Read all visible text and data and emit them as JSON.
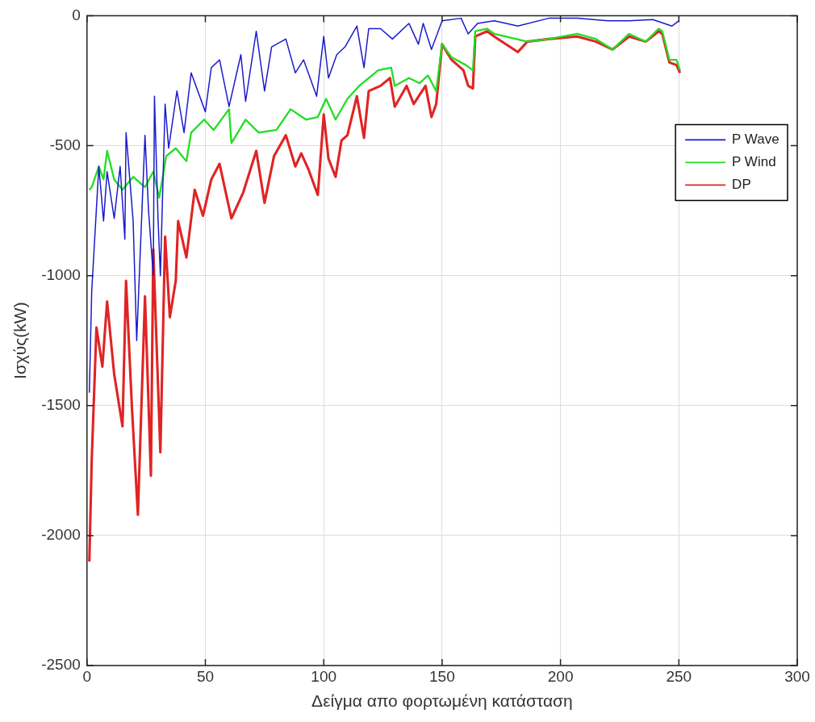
{
  "chart_data": {
    "type": "line",
    "xlabel": "Δείγμα απο φορτωμένη κατάσταση",
    "ylabel": "Ισχύς(kW)",
    "xlim": [
      0,
      300
    ],
    "xticks": [
      0,
      50,
      100,
      150,
      200,
      250,
      300
    ],
    "ylim": [
      -2500,
      0
    ],
    "yticks": [
      -2500,
      -2000,
      -1500,
      -1000,
      -500,
      0
    ],
    "grid": true,
    "legend": "top right",
    "marker": "none",
    "line_style": "solid",
    "series": [
      {
        "name": "P Wave",
        "color": "#1a1acc",
        "x": [
          1,
          2,
          5,
          7,
          8.5,
          11.5,
          14,
          16,
          16.5,
          19.5,
          21,
          24.5,
          26,
          28,
          28.5,
          30,
          31,
          33,
          34.5,
          38,
          41,
          44,
          50,
          52.5,
          56,
          60,
          65,
          67,
          71.5,
          75,
          78,
          84,
          88,
          91.5,
          97,
          100,
          102,
          105.5,
          109,
          114,
          117,
          119,
          124,
          129,
          136,
          140,
          142,
          145.5,
          150,
          158,
          161,
          165,
          172,
          182,
          195,
          207,
          220,
          229,
          239,
          247,
          250
        ],
        "values": [
          -1450,
          -1060,
          -580,
          -790,
          -600,
          -780,
          -580,
          -860,
          -450,
          -790,
          -1250,
          -460,
          -750,
          -1000,
          -310,
          -780,
          -1000,
          -340,
          -510,
          -290,
          -450,
          -220,
          -370,
          -200,
          -170,
          -350,
          -150,
          -330,
          -60,
          -290,
          -120,
          -90,
          -220,
          -170,
          -310,
          -80,
          -240,
          -150,
          -120,
          -40,
          -200,
          -50,
          -50,
          -90,
          -30,
          -110,
          -30,
          -130,
          -20,
          -10,
          -70,
          -30,
          -20,
          -40,
          -10,
          -10,
          -20,
          -20,
          -15,
          -40,
          -20
        ]
      },
      {
        "name": "P Wind",
        "color": "#22dd22",
        "x": [
          1,
          2,
          5,
          7,
          8.5,
          11.5,
          15,
          19.5,
          24.5,
          28,
          30.5,
          33.5,
          37.5,
          42,
          44,
          49.5,
          53.5,
          60,
          61,
          67,
          72.5,
          80,
          86,
          92.5,
          97.5,
          101,
          105,
          110,
          115,
          123,
          128.5,
          130,
          136,
          140.5,
          144,
          147.5,
          150,
          154,
          160,
          163,
          164,
          169,
          172,
          186,
          195,
          207,
          215,
          222,
          229,
          236,
          241.5,
          243,
          246,
          249,
          250.5
        ],
        "values": [
          -670,
          -660,
          -580,
          -630,
          -520,
          -630,
          -670,
          -620,
          -660,
          -600,
          -700,
          -540,
          -510,
          -560,
          -450,
          -400,
          -440,
          -360,
          -490,
          -400,
          -450,
          -440,
          -360,
          -400,
          -390,
          -320,
          -400,
          -320,
          -270,
          -210,
          -200,
          -270,
          -240,
          -260,
          -230,
          -290,
          -110,
          -160,
          -190,
          -210,
          -60,
          -50,
          -70,
          -100,
          -90,
          -70,
          -90,
          -130,
          -70,
          -100,
          -50,
          -60,
          -170,
          -170,
          -210
        ]
      },
      {
        "name": "DP",
        "color": "#e02424",
        "x": [
          1,
          2,
          4,
          6.5,
          8.5,
          11.5,
          15,
          16.5,
          19,
          21.5,
          24.5,
          27,
          28,
          31,
          33,
          35,
          37.5,
          38.5,
          42,
          45.5,
          49,
          52.5,
          56,
          61,
          66,
          71.5,
          75,
          79,
          84,
          88,
          90.5,
          93.5,
          97.5,
          100,
          102,
          105,
          107.5,
          110,
          114,
          117,
          119,
          124,
          128,
          130,
          135,
          138,
          143,
          145.5,
          147.5,
          150,
          154,
          159,
          161,
          163,
          164,
          169,
          172,
          182,
          186,
          195,
          207,
          215,
          222,
          229,
          236,
          241.5,
          243,
          246,
          249,
          250.5
        ],
        "values": [
          -2100,
          -1710,
          -1200,
          -1350,
          -1100,
          -1380,
          -1580,
          -1020,
          -1510,
          -1920,
          -1080,
          -1770,
          -900,
          -1680,
          -850,
          -1160,
          -1020,
          -790,
          -930,
          -670,
          -770,
          -630,
          -570,
          -780,
          -680,
          -520,
          -720,
          -540,
          -460,
          -580,
          -530,
          -590,
          -690,
          -380,
          -550,
          -620,
          -480,
          -460,
          -310,
          -470,
          -290,
          -270,
          -240,
          -350,
          -270,
          -340,
          -270,
          -390,
          -340,
          -110,
          -170,
          -210,
          -270,
          -280,
          -80,
          -60,
          -80,
          -140,
          -100,
          -90,
          -80,
          -100,
          -130,
          -80,
          -100,
          -60,
          -70,
          -180,
          -190,
          -220
        ]
      }
    ]
  }
}
